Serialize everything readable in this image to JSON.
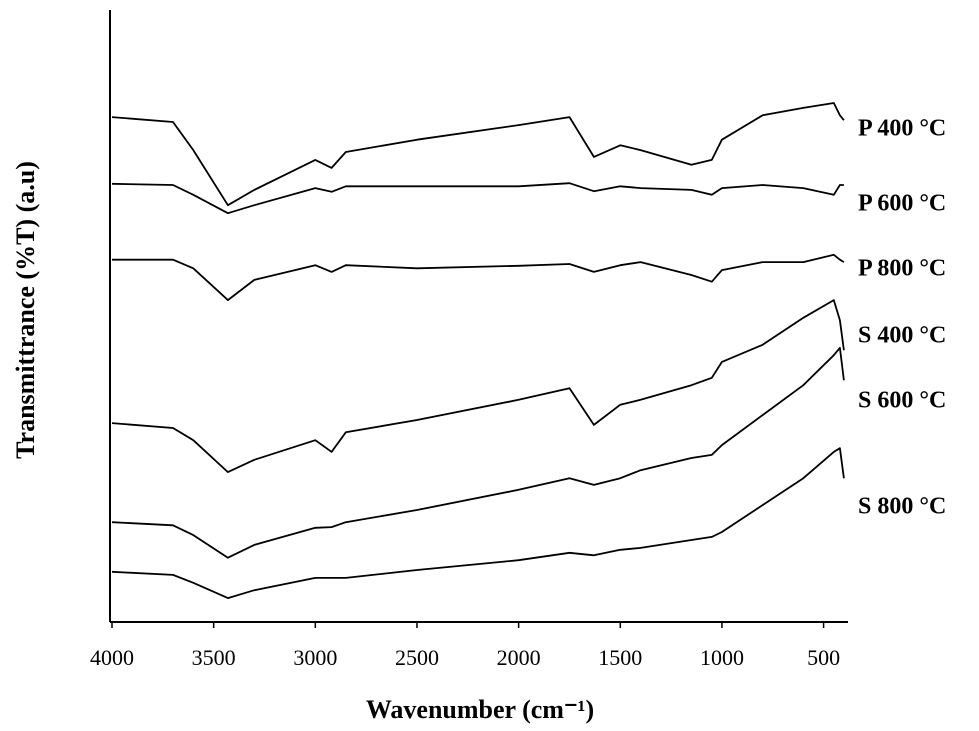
{
  "chart_data": {
    "type": "line",
    "xlabel": "Wavenumber (cm⁻¹)",
    "ylabel": "Transmittrance (%T) (a.u)",
    "xlim": [
      4000,
      380
    ],
    "ylim": [
      0,
      100
    ],
    "xticks": [
      4000,
      3500,
      3000,
      2500,
      2000,
      1500,
      1000,
      500
    ],
    "x": [
      4000,
      3700,
      3600,
      3430,
      3300,
      3000,
      2920,
      2850,
      2500,
      2000,
      1750,
      1630,
      1500,
      1400,
      1150,
      1050,
      1000,
      800,
      600,
      450,
      420,
      400
    ],
    "series": [
      {
        "name": "P 400 °C",
        "color": "#000000",
        "values": [
          82.5,
          81.7,
          77.1,
          68.1,
          70.6,
          75.5,
          74.2,
          76.8,
          78.8,
          81.2,
          82.5,
          76.0,
          77.9,
          77.1,
          74.7,
          75.5,
          78.8,
          82.8,
          84.0,
          84.8,
          82.8,
          82.0
        ]
      },
      {
        "name": "P 600 °C",
        "color": "#000000",
        "values": [
          71.6,
          71.4,
          69.8,
          66.8,
          68.1,
          70.9,
          70.3,
          71.2,
          71.2,
          71.2,
          71.7,
          70.4,
          71.2,
          70.9,
          70.6,
          69.8,
          70.9,
          71.4,
          70.9,
          69.8,
          71.4,
          71.4
        ]
      },
      {
        "name": "P 800 °C",
        "color": "#000000",
        "values": [
          59.2,
          59.2,
          57.8,
          52.6,
          55.9,
          58.3,
          57.2,
          58.3,
          57.8,
          58.2,
          58.5,
          57.2,
          58.3,
          58.8,
          56.7,
          55.6,
          57.5,
          58.8,
          58.8,
          60.0,
          59.2,
          58.8
        ]
      },
      {
        "name": "S 400 °C",
        "color": "#000000",
        "values": [
          32.5,
          31.7,
          29.7,
          24.5,
          26.5,
          29.7,
          27.8,
          31.0,
          33.0,
          36.3,
          38.2,
          32.2,
          35.5,
          36.3,
          38.7,
          39.9,
          42.5,
          45.3,
          49.7,
          52.6,
          49.3,
          44.4
        ]
      },
      {
        "name": "S 600 °C",
        "color": "#000000",
        "values": [
          16.3,
          15.8,
          14.2,
          10.5,
          12.6,
          15.4,
          15.5,
          16.3,
          18.3,
          21.6,
          23.5,
          22.4,
          23.5,
          24.8,
          26.8,
          27.3,
          28.9,
          33.8,
          38.7,
          43.6,
          44.8,
          39.5
        ]
      },
      {
        "name": "S 800 °C",
        "color": "#000000",
        "values": [
          8.2,
          7.7,
          6.4,
          3.9,
          5.2,
          7.2,
          7.2,
          7.2,
          8.5,
          10.1,
          11.3,
          10.9,
          11.8,
          12.1,
          13.4,
          13.9,
          14.7,
          19.1,
          23.5,
          27.8,
          28.4,
          23.5
        ]
      }
    ]
  }
}
